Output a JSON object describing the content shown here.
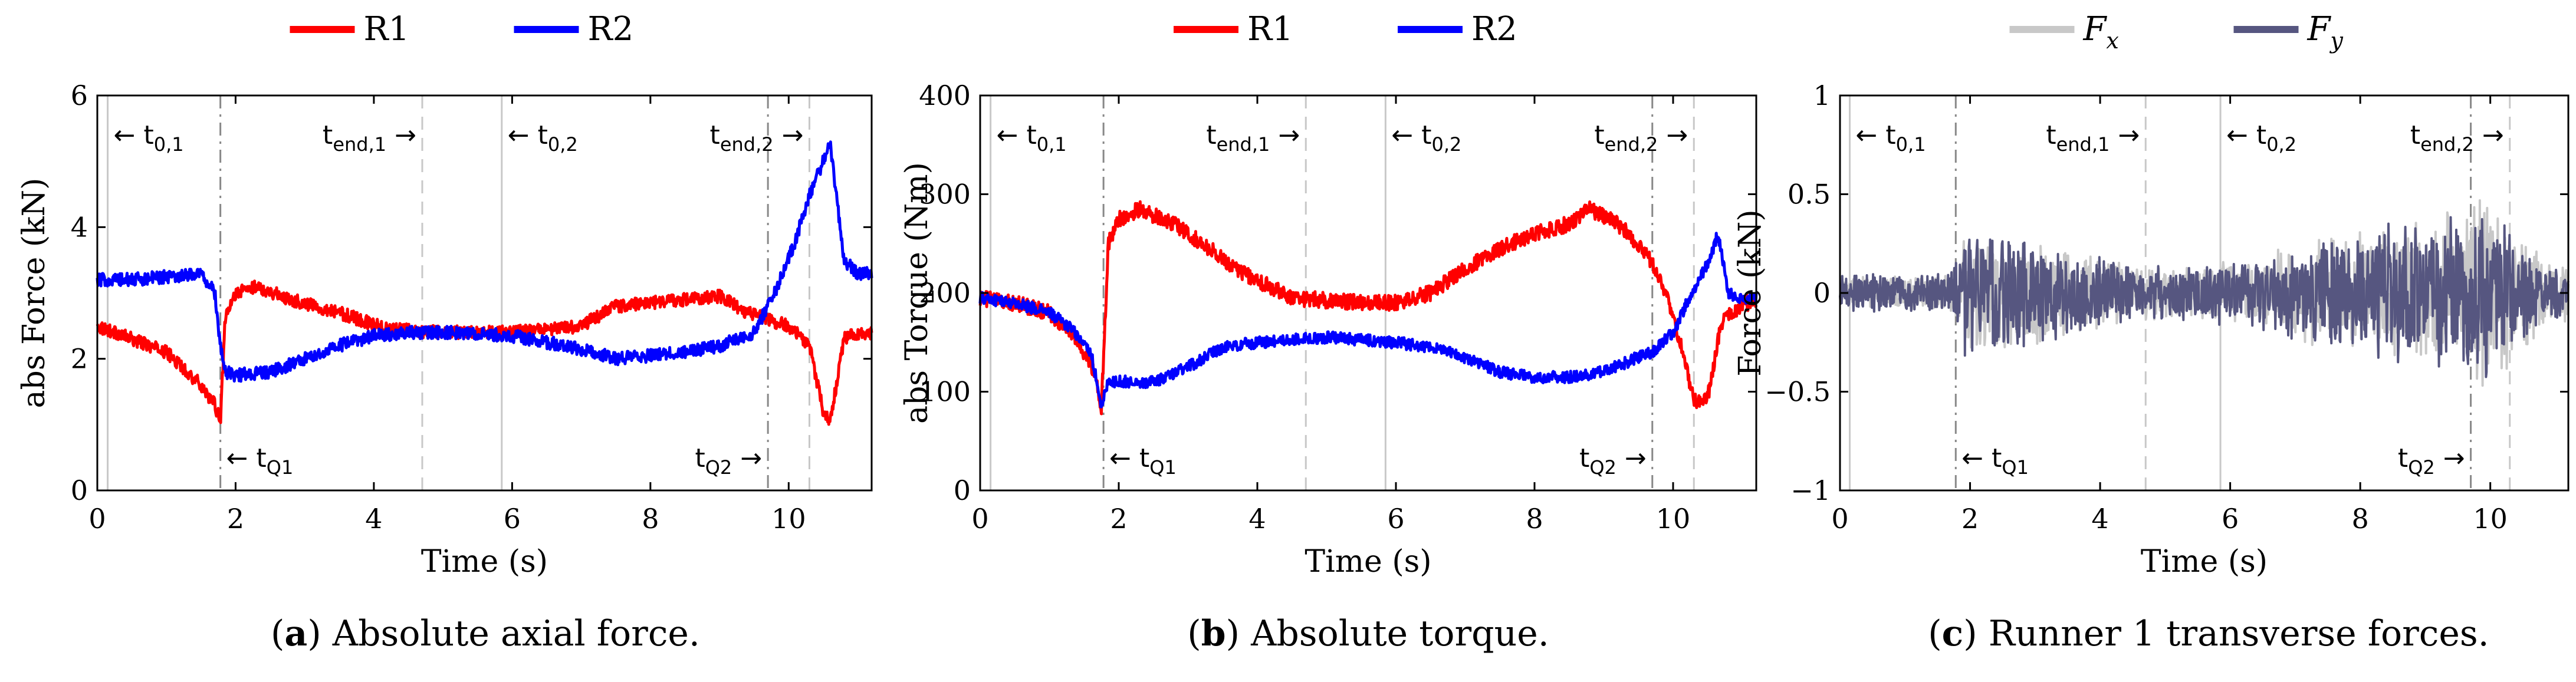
{
  "figure": {
    "captions": [
      {
        "tag": "a",
        "text": "Absolute axial force."
      },
      {
        "tag": "b",
        "text": "Absolute torque."
      },
      {
        "tag": "c",
        "text": "Runner 1 transverse forces."
      }
    ]
  },
  "chart_data": [
    {
      "type": "line",
      "title": "",
      "xlabel": "Time (s)",
      "ylabel": "abs Force (kN)",
      "xlim": [
        0,
        11.2
      ],
      "ylim": [
        0,
        6
      ],
      "xticks": [
        0,
        2,
        4,
        6,
        8,
        10
      ],
      "xtick_labels": [
        "0",
        "2",
        "4",
        "6",
        "8",
        "10"
      ],
      "yticks": [
        0,
        2,
        4,
        6
      ],
      "ytick_labels": [
        "0",
        "2",
        "4",
        "6"
      ],
      "grid": false,
      "legend": {
        "placement": "top-center",
        "entries": [
          "R1",
          "R2"
        ]
      },
      "series": [
        {
          "name": "R1",
          "color": "#ff0000",
          "noise": 0.1,
          "x": [
            0,
            0.5,
            1.0,
            1.5,
            1.7,
            1.78,
            1.85,
            2.0,
            2.3,
            2.8,
            3.5,
            4.2,
            5.0,
            6.0,
            7.0,
            7.5,
            8.0,
            8.5,
            9.0,
            9.4,
            9.7,
            10.0,
            10.3,
            10.5,
            10.6,
            10.8,
            11.0,
            11.2
          ],
          "y": [
            2.5,
            2.3,
            2.1,
            1.6,
            1.3,
            1.05,
            2.6,
            3.0,
            3.1,
            2.9,
            2.7,
            2.45,
            2.4,
            2.4,
            2.5,
            2.8,
            2.85,
            2.9,
            2.95,
            2.7,
            2.6,
            2.5,
            2.2,
            1.2,
            1.05,
            2.3,
            2.4,
            2.4
          ]
        },
        {
          "name": "R2",
          "color": "#0000ff",
          "noise": 0.1,
          "x": [
            0,
            0.5,
            1.0,
            1.5,
            1.7,
            1.78,
            1.85,
            2.0,
            2.5,
            3.0,
            3.5,
            4.0,
            4.5,
            5.0,
            6.0,
            7.0,
            7.5,
            8.0,
            8.5,
            9.0,
            9.5,
            9.8,
            10.1,
            10.3,
            10.5,
            10.6,
            10.8,
            11.0,
            11.2
          ],
          "y": [
            3.2,
            3.2,
            3.25,
            3.3,
            3.0,
            2.2,
            1.8,
            1.75,
            1.8,
            2.0,
            2.2,
            2.35,
            2.4,
            2.4,
            2.35,
            2.15,
            2.0,
            2.05,
            2.1,
            2.2,
            2.4,
            3.0,
            3.8,
            4.5,
            5.0,
            5.3,
            3.5,
            3.3,
            3.3
          ]
        }
      ],
      "event_lines": [
        {
          "x": 0.15,
          "style": "solid",
          "color": "#c8c8c8"
        },
        {
          "x": 1.78,
          "style": "dashdot",
          "color": "#888888"
        },
        {
          "x": 4.7,
          "style": "dashed",
          "color": "#c8c8c8"
        },
        {
          "x": 5.85,
          "style": "solid",
          "color": "#c8c8c8"
        },
        {
          "x": 9.7,
          "style": "dashdot",
          "color": "#888888"
        },
        {
          "x": 10.3,
          "style": "dashed",
          "color": "#c8c8c8"
        }
      ],
      "annotations": [
        {
          "arrow_left": true,
          "base": "t",
          "sub": "0,1",
          "x": 0.15,
          "row": "top"
        },
        {
          "arrow_left": false,
          "base": "t",
          "sub": "end,1",
          "x": 4.7,
          "row": "top"
        },
        {
          "arrow_left": true,
          "base": "t",
          "sub": "0,2",
          "x": 5.85,
          "row": "top"
        },
        {
          "arrow_left": false,
          "base": "t",
          "sub": "end,2",
          "x": 10.3,
          "row": "top"
        },
        {
          "arrow_left": true,
          "base": "t",
          "sub": "Q1",
          "x": 1.78,
          "row": "bottom"
        },
        {
          "arrow_left": false,
          "base": "t",
          "sub": "Q2",
          "x": 9.7,
          "row": "bottom"
        }
      ]
    },
    {
      "type": "line",
      "title": "",
      "xlabel": "Time (s)",
      "ylabel": "abs Torque (Nm)",
      "xlim": [
        0,
        11.2
      ],
      "ylim": [
        0,
        400
      ],
      "xticks": [
        0,
        2,
        4,
        6,
        8,
        10
      ],
      "xtick_labels": [
        "0",
        "2",
        "4",
        "6",
        "8",
        "10"
      ],
      "yticks": [
        0,
        100,
        200,
        300,
        400
      ],
      "ytick_labels": [
        "0",
        "100",
        "200",
        "300",
        "400"
      ],
      "grid": false,
      "legend": {
        "placement": "top-center",
        "entries": [
          "R1",
          "R2"
        ]
      },
      "series": [
        {
          "name": "R1",
          "color": "#ff0000",
          "noise": 8,
          "x": [
            0,
            0.5,
            1.0,
            1.3,
            1.6,
            1.75,
            1.85,
            2.0,
            2.3,
            2.8,
            3.2,
            3.8,
            4.5,
            5.5,
            6.0,
            6.5,
            7.0,
            7.5,
            8.0,
            8.5,
            8.8,
            9.2,
            9.5,
            9.7,
            9.9,
            10.1,
            10.3,
            10.5,
            10.7,
            11.0,
            11.2
          ],
          "y": [
            195,
            190,
            180,
            160,
            130,
            85,
            250,
            275,
            285,
            270,
            250,
            220,
            195,
            190,
            190,
            200,
            225,
            245,
            260,
            270,
            285,
            270,
            250,
            230,
            200,
            150,
            90,
            95,
            170,
            190,
            190
          ]
        },
        {
          "name": "R2",
          "color": "#0000ff",
          "noise": 6,
          "x": [
            0,
            0.5,
            1.0,
            1.3,
            1.6,
            1.75,
            1.85,
            2.0,
            2.5,
            3.0,
            3.5,
            4.0,
            5.0,
            6.0,
            6.5,
            7.0,
            7.5,
            8.0,
            8.5,
            9.0,
            9.5,
            9.7,
            10.0,
            10.2,
            10.5,
            10.65,
            10.8,
            11.0,
            11.2
          ],
          "y": [
            195,
            190,
            180,
            165,
            140,
            85,
            110,
            110,
            110,
            125,
            145,
            150,
            155,
            150,
            145,
            135,
            120,
            115,
            115,
            120,
            135,
            140,
            160,
            190,
            230,
            260,
            200,
            195,
            195
          ]
        }
      ],
      "event_lines": [
        {
          "x": 0.15,
          "style": "solid",
          "color": "#c8c8c8"
        },
        {
          "x": 1.78,
          "style": "dashdot",
          "color": "#888888"
        },
        {
          "x": 4.7,
          "style": "dashed",
          "color": "#c8c8c8"
        },
        {
          "x": 5.85,
          "style": "solid",
          "color": "#c8c8c8"
        },
        {
          "x": 9.7,
          "style": "dashdot",
          "color": "#888888"
        },
        {
          "x": 10.3,
          "style": "dashed",
          "color": "#c8c8c8"
        }
      ],
      "annotations": [
        {
          "arrow_left": true,
          "base": "t",
          "sub": "0,1",
          "x": 0.15,
          "row": "top"
        },
        {
          "arrow_left": false,
          "base": "t",
          "sub": "end,1",
          "x": 4.7,
          "row": "top"
        },
        {
          "arrow_left": true,
          "base": "t",
          "sub": "0,2",
          "x": 5.85,
          "row": "top"
        },
        {
          "arrow_left": false,
          "base": "t",
          "sub": "end,2",
          "x": 10.3,
          "row": "top"
        },
        {
          "arrow_left": true,
          "base": "t",
          "sub": "Q1",
          "x": 1.78,
          "row": "bottom"
        },
        {
          "arrow_left": false,
          "base": "t",
          "sub": "Q2",
          "x": 9.7,
          "row": "bottom"
        }
      ]
    },
    {
      "type": "line",
      "title": "",
      "xlabel": "Time (s)",
      "ylabel": "Force (kN)",
      "xlim": [
        0,
        11.2
      ],
      "ylim": [
        -1,
        1
      ],
      "xticks": [
        0,
        2,
        4,
        6,
        8,
        10
      ],
      "xtick_labels": [
        "0",
        "2",
        "4",
        "6",
        "8",
        "10"
      ],
      "yticks": [
        -1,
        -0.5,
        0,
        0.5,
        1
      ],
      "ytick_labels": [
        "−1",
        "−0.5",
        "0",
        "0.5",
        "1"
      ],
      "grid": false,
      "legend": {
        "placement": "top-center",
        "entries": [
          "Fx",
          "Fy"
        ],
        "italic_math": true
      },
      "series": [
        {
          "name": "Fx",
          "color": "#c8c8c8",
          "oscillation": true,
          "x": [
            0,
            1.7,
            1.9,
            2.5,
            3.5,
            4.5,
            5.5,
            6.5,
            7.5,
            8.5,
            9.5,
            10.0,
            10.4,
            10.8,
            11.2
          ],
          "amplitude": [
            0.08,
            0.1,
            0.3,
            0.3,
            0.25,
            0.15,
            0.15,
            0.2,
            0.3,
            0.35,
            0.45,
            0.55,
            0.5,
            0.2,
            0.15
          ]
        },
        {
          "name": "Fy",
          "color": "#565680",
          "oscillation": true,
          "x": [
            0,
            1.7,
            1.9,
            2.5,
            3.5,
            4.5,
            5.5,
            6.5,
            7.5,
            8.5,
            9.5,
            10.0,
            10.4,
            10.8,
            11.2
          ],
          "amplitude": [
            0.1,
            0.12,
            0.35,
            0.35,
            0.25,
            0.15,
            0.15,
            0.2,
            0.3,
            0.4,
            0.4,
            0.45,
            0.35,
            0.15,
            0.15
          ]
        }
      ],
      "event_lines": [
        {
          "x": 0.15,
          "style": "solid",
          "color": "#c8c8c8"
        },
        {
          "x": 1.78,
          "style": "dashdot",
          "color": "#888888"
        },
        {
          "x": 4.7,
          "style": "dashed",
          "color": "#c8c8c8"
        },
        {
          "x": 5.85,
          "style": "solid",
          "color": "#c8c8c8"
        },
        {
          "x": 9.7,
          "style": "dashdot",
          "color": "#888888"
        },
        {
          "x": 10.3,
          "style": "dashed",
          "color": "#c8c8c8"
        }
      ],
      "annotations": [
        {
          "arrow_left": true,
          "base": "t",
          "sub": "0,1",
          "x": 0.15,
          "row": "top"
        },
        {
          "arrow_left": false,
          "base": "t",
          "sub": "end,1",
          "x": 4.7,
          "row": "top"
        },
        {
          "arrow_left": true,
          "base": "t",
          "sub": "0,2",
          "x": 5.85,
          "row": "top"
        },
        {
          "arrow_left": false,
          "base": "t",
          "sub": "end,2",
          "x": 10.3,
          "row": "top"
        },
        {
          "arrow_left": true,
          "base": "t",
          "sub": "Q1",
          "x": 1.78,
          "row": "bottom"
        },
        {
          "arrow_left": false,
          "base": "t",
          "sub": "Q2",
          "x": 9.7,
          "row": "bottom"
        }
      ]
    }
  ]
}
